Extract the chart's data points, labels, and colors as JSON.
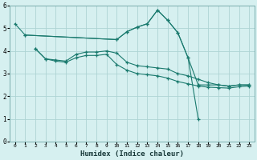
{
  "bg_color": "#d6f0f0",
  "line_color": "#1a7a6e",
  "grid_color": "#aed4d4",
  "xlabel": "Humidex (Indice chaleur)",
  "xlim": [
    -0.5,
    23.5
  ],
  "ylim": [
    0,
    6
  ],
  "xticks": [
    0,
    1,
    2,
    3,
    4,
    5,
    6,
    7,
    8,
    9,
    10,
    11,
    12,
    13,
    14,
    15,
    16,
    17,
    18,
    19,
    20,
    21,
    22,
    23
  ],
  "yticks": [
    0,
    1,
    2,
    3,
    4,
    5,
    6
  ],
  "line1_x": [
    0,
    1,
    10,
    11,
    12,
    13,
    14,
    15,
    16,
    17,
    18
  ],
  "line1_y": [
    5.2,
    4.7,
    4.5,
    4.85,
    5.05,
    5.2,
    5.8,
    5.35,
    4.8,
    3.7,
    1.0
  ],
  "line2_x": [
    1,
    10,
    11,
    12,
    13,
    14,
    15,
    16,
    17,
    18,
    19,
    20,
    21,
    22,
    23
  ],
  "line2_y": [
    4.7,
    4.5,
    4.85,
    5.05,
    5.2,
    5.8,
    5.35,
    4.8,
    3.7,
    2.5,
    2.5,
    2.5,
    2.45,
    2.5,
    2.5
  ],
  "line3_x": [
    2,
    3,
    4,
    5,
    6,
    7,
    8,
    9,
    10,
    11,
    12,
    13,
    14,
    15,
    16,
    17,
    18,
    19,
    20,
    21,
    22,
    23
  ],
  "line3_y": [
    4.1,
    3.65,
    3.6,
    3.55,
    3.85,
    3.95,
    3.95,
    4.0,
    3.9,
    3.5,
    3.35,
    3.3,
    3.25,
    3.2,
    3.0,
    2.9,
    2.75,
    2.6,
    2.5,
    2.45,
    2.5,
    2.5
  ],
  "line4_x": [
    2,
    3,
    4,
    5,
    6,
    7,
    8,
    9,
    10,
    11,
    12,
    13,
    14,
    15,
    16,
    17,
    18,
    19,
    20,
    21,
    22,
    23
  ],
  "line4_y": [
    4.1,
    3.65,
    3.55,
    3.5,
    3.7,
    3.8,
    3.8,
    3.85,
    3.4,
    3.15,
    3.0,
    2.95,
    2.9,
    2.8,
    2.65,
    2.55,
    2.45,
    2.4,
    2.38,
    2.36,
    2.42,
    2.45
  ]
}
